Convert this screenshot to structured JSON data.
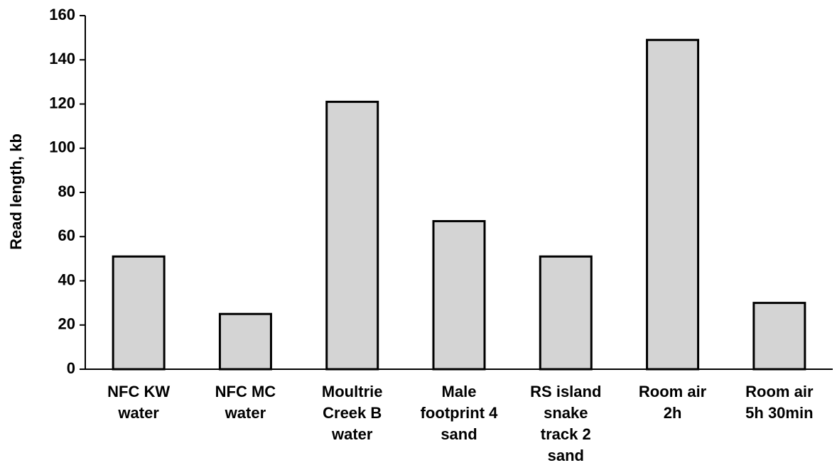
{
  "chart_data": {
    "type": "bar",
    "y_label": "Read length, kb",
    "categories": [
      "NFC KW\nwater",
      "NFC MC\nwater",
      "Moultrie\nCreek B\nwater",
      "Male\nfootprint 4\nsand",
      "RS island\nsnake\ntrack 2\nsand",
      "Room air\n2h",
      "Room air\n5h 30min"
    ],
    "values": [
      51,
      25,
      121,
      67,
      51,
      149,
      30
    ],
    "color": "#d4d4d4",
    "ylim": [
      0,
      160
    ],
    "yticks": [
      0,
      20,
      40,
      60,
      80,
      100,
      120,
      140,
      160
    ],
    "grid": false
  }
}
